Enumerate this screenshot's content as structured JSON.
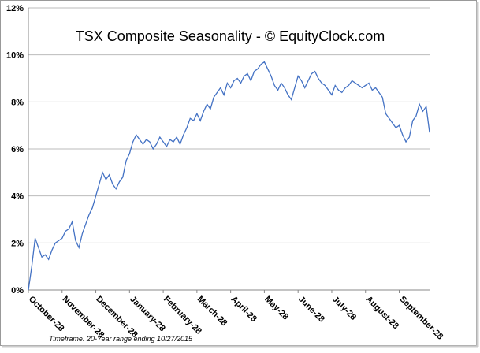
{
  "chart_data": {
    "type": "line",
    "title": "TSX Composite Seasonality - © EquityClock.com",
    "footnote": "Timeframe: 20-Year range ending 10/27/2015",
    "categories": [
      "October-28",
      null,
      null,
      null,
      null,
      null,
      null,
      null,
      null,
      null,
      "November-28",
      null,
      null,
      null,
      null,
      null,
      null,
      null,
      null,
      null,
      "December-28",
      null,
      null,
      null,
      null,
      null,
      null,
      null,
      null,
      null,
      "January-28",
      null,
      null,
      null,
      null,
      null,
      null,
      null,
      null,
      null,
      "February-28",
      null,
      null,
      null,
      null,
      null,
      null,
      null,
      null,
      null,
      "March-28",
      null,
      null,
      null,
      null,
      null,
      null,
      null,
      null,
      null,
      "April-28",
      null,
      null,
      null,
      null,
      null,
      null,
      null,
      null,
      null,
      "May-28",
      null,
      null,
      null,
      null,
      null,
      null,
      null,
      null,
      null,
      "June-28",
      null,
      null,
      null,
      null,
      null,
      null,
      null,
      null,
      null,
      "July-28",
      null,
      null,
      null,
      null,
      null,
      null,
      null,
      null,
      null,
      "August-28",
      null,
      null,
      null,
      null,
      null,
      null,
      null,
      null,
      null,
      "September-28",
      null,
      null,
      null,
      null,
      null,
      null,
      null,
      null,
      null
    ],
    "series": [
      {
        "color": "#4472c4",
        "values": [
          0,
          1.0,
          2.2,
          1.8,
          1.4,
          1.5,
          1.3,
          1.7,
          2.0,
          2.1,
          2.2,
          2.5,
          2.6,
          2.9,
          2.1,
          1.8,
          2.4,
          2.8,
          3.2,
          3.5,
          4.0,
          4.5,
          5.0,
          4.7,
          4.9,
          4.5,
          4.3,
          4.6,
          4.8,
          5.5,
          5.8,
          6.3,
          6.6,
          6.4,
          6.2,
          6.4,
          6.3,
          6.0,
          6.2,
          6.5,
          6.3,
          6.1,
          6.4,
          6.3,
          6.5,
          6.2,
          6.6,
          6.9,
          7.3,
          7.2,
          7.5,
          7.2,
          7.6,
          7.9,
          7.7,
          8.2,
          8.4,
          8.6,
          8.3,
          8.8,
          8.6,
          8.9,
          9.0,
          8.8,
          9.1,
          9.2,
          8.9,
          9.3,
          9.4,
          9.6,
          9.7,
          9.4,
          9.1,
          8.7,
          8.5,
          8.8,
          8.6,
          8.3,
          8.1,
          8.6,
          9.1,
          8.9,
          8.6,
          8.9,
          9.2,
          9.3,
          9.0,
          8.8,
          8.7,
          8.5,
          8.3,
          8.7,
          8.5,
          8.4,
          8.6,
          8.7,
          8.9,
          8.8,
          8.7,
          8.6,
          8.7,
          8.8,
          8.5,
          8.6,
          8.4,
          8.2,
          7.5,
          7.3,
          7.1,
          6.9,
          7.0,
          6.6,
          6.3,
          6.5,
          7.2,
          7.4,
          7.9,
          7.6,
          7.8,
          6.7
        ]
      }
    ],
    "ylim": [
      0,
      12
    ],
    "yticks": [
      {
        "value": 0,
        "label": "0%"
      },
      {
        "value": 2,
        "label": "2%"
      },
      {
        "value": 4,
        "label": "4%"
      },
      {
        "value": 6,
        "label": "6%"
      },
      {
        "value": 8,
        "label": "8%"
      },
      {
        "value": 10,
        "label": "10%"
      },
      {
        "value": 12,
        "label": "12%"
      }
    ],
    "grid": true
  }
}
